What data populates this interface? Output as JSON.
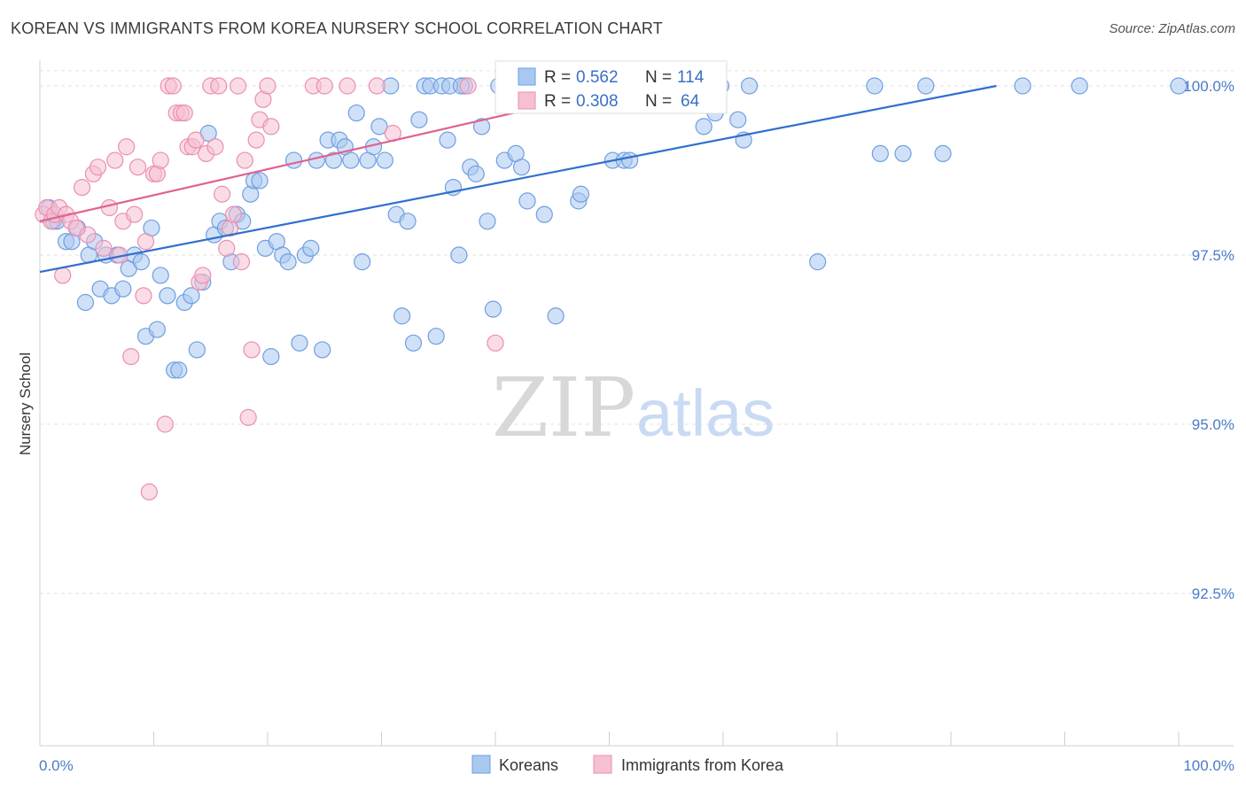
{
  "title": "KOREAN VS IMMIGRANTS FROM KOREA NURSERY SCHOOL CORRELATION CHART",
  "source": "Source: ZipAtlas.com",
  "watermark": {
    "zip": "ZIP",
    "atlas": "atlas"
  },
  "colors": {
    "blue_fill": "#a9c8f0",
    "blue_stroke": "#6f9ee0",
    "blue_line": "#2f6fcf",
    "pink_fill": "#f6c0d2",
    "pink_stroke": "#ea8fb0",
    "pink_line": "#e0628f",
    "grid": "#e2e2e2",
    "tick_label": "#4a7cc9"
  },
  "legend_top": {
    "rows": [
      {
        "r_label": "R = ",
        "r_value": "0.562",
        "n_label": "N = ",
        "n_value": "114",
        "series": "koreans"
      },
      {
        "r_label": "R = ",
        "r_value": "0.308",
        "n_label": "N = ",
        "n_value": "64",
        "series": "immigrants"
      }
    ]
  },
  "legend_bottom": [
    "Koreans",
    "Immigrants from Korea"
  ],
  "chart_data": {
    "type": "scatter",
    "title": "KOREAN VS IMMIGRANTS FROM KOREA NURSERY SCHOOL CORRELATION CHART",
    "xlabel": "",
    "ylabel": "Nursery School",
    "xlim": [
      0,
      100
    ],
    "ylim": [
      90.0,
      100.25
    ],
    "x_tick_labels": [
      "0.0%",
      "100.0%"
    ],
    "y_ticks": [
      92.5,
      95.0,
      97.5,
      100.0
    ],
    "y_tick_labels": [
      "92.5%",
      "95.0%",
      "97.5%",
      "100.0%"
    ],
    "grid": true,
    "legend_placement": "top-center",
    "series": [
      {
        "name": "Koreans",
        "r": 0.562,
        "n": 114,
        "trend": {
          "x0": 0,
          "y0": 97.25,
          "x1": 84,
          "y1": 100.0
        },
        "points": [
          [
            0.8,
            98.2
          ],
          [
            1.2,
            98.0
          ],
          [
            1.5,
            98.0
          ],
          [
            2.3,
            97.7
          ],
          [
            2.8,
            97.7
          ],
          [
            3.3,
            97.9
          ],
          [
            4.0,
            96.8
          ],
          [
            4.3,
            97.5
          ],
          [
            4.8,
            97.7
          ],
          [
            5.3,
            97.0
          ],
          [
            5.8,
            97.5
          ],
          [
            6.3,
            96.9
          ],
          [
            6.8,
            97.5
          ],
          [
            7.3,
            97.0
          ],
          [
            7.8,
            97.3
          ],
          [
            8.3,
            97.5
          ],
          [
            8.9,
            97.4
          ],
          [
            9.3,
            96.3
          ],
          [
            9.8,
            97.9
          ],
          [
            10.3,
            96.4
          ],
          [
            10.6,
            97.2
          ],
          [
            11.2,
            96.9
          ],
          [
            11.8,
            95.8
          ],
          [
            12.2,
            95.8
          ],
          [
            12.7,
            96.8
          ],
          [
            13.3,
            96.9
          ],
          [
            13.8,
            96.1
          ],
          [
            14.3,
            97.1
          ],
          [
            14.8,
            99.3
          ],
          [
            15.3,
            97.8
          ],
          [
            15.8,
            98.0
          ],
          [
            16.3,
            97.9
          ],
          [
            16.8,
            97.4
          ],
          [
            17.3,
            98.1
          ],
          [
            17.8,
            98.0
          ],
          [
            18.5,
            98.4
          ],
          [
            18.8,
            98.6
          ],
          [
            19.3,
            98.6
          ],
          [
            19.8,
            97.6
          ],
          [
            20.3,
            96.0
          ],
          [
            20.8,
            97.7
          ],
          [
            21.3,
            97.5
          ],
          [
            21.8,
            97.4
          ],
          [
            22.3,
            98.9
          ],
          [
            22.8,
            96.2
          ],
          [
            23.3,
            97.5
          ],
          [
            23.8,
            97.6
          ],
          [
            24.3,
            98.9
          ],
          [
            24.8,
            96.1
          ],
          [
            25.3,
            99.2
          ],
          [
            25.8,
            98.9
          ],
          [
            26.3,
            99.2
          ],
          [
            26.8,
            99.1
          ],
          [
            27.3,
            98.9
          ],
          [
            27.8,
            99.6
          ],
          [
            28.3,
            97.4
          ],
          [
            28.8,
            98.9
          ],
          [
            29.3,
            99.1
          ],
          [
            29.8,
            99.4
          ],
          [
            30.3,
            98.9
          ],
          [
            30.8,
            100.0
          ],
          [
            31.3,
            98.1
          ],
          [
            31.8,
            96.6
          ],
          [
            32.3,
            98.0
          ],
          [
            32.8,
            96.2
          ],
          [
            33.3,
            99.5
          ],
          [
            33.8,
            100.0
          ],
          [
            34.3,
            100.0
          ],
          [
            34.8,
            96.3
          ],
          [
            35.3,
            100.0
          ],
          [
            35.8,
            99.2
          ],
          [
            36.3,
            98.5
          ],
          [
            36.8,
            97.5
          ],
          [
            37.3,
            100.0
          ],
          [
            37.8,
            98.8
          ],
          [
            38.3,
            98.7
          ],
          [
            38.8,
            99.4
          ],
          [
            39.3,
            98.0
          ],
          [
            39.8,
            96.7
          ],
          [
            40.3,
            100.0
          ],
          [
            40.8,
            98.9
          ],
          [
            41.3,
            100.0
          ],
          [
            41.8,
            99.0
          ],
          [
            42.3,
            98.8
          ],
          [
            42.8,
            98.3
          ],
          [
            43.3,
            100.0
          ],
          [
            44.3,
            98.1
          ],
          [
            45.3,
            96.6
          ],
          [
            46.3,
            100.0
          ],
          [
            47.3,
            98.3
          ],
          [
            47.5,
            98.4
          ],
          [
            48.3,
            100.0
          ],
          [
            50.3,
            98.9
          ],
          [
            50.8,
            100.0
          ],
          [
            51.3,
            98.9
          ],
          [
            51.8,
            98.9
          ],
          [
            52.3,
            100.0
          ],
          [
            56.3,
            100.0
          ],
          [
            56.8,
            100.0
          ],
          [
            58.3,
            99.4
          ],
          [
            59.3,
            99.6
          ],
          [
            59.8,
            100.0
          ],
          [
            61.3,
            99.5
          ],
          [
            61.8,
            99.2
          ],
          [
            62.3,
            100.0
          ],
          [
            68.3,
            97.4
          ],
          [
            73.3,
            100.0
          ],
          [
            73.8,
            99.0
          ],
          [
            75.8,
            99.0
          ],
          [
            77.8,
            100.0
          ],
          [
            79.3,
            99.0
          ],
          [
            86.3,
            100.0
          ],
          [
            91.3,
            100.0
          ],
          [
            100.0,
            100.0
          ],
          [
            36.0,
            100.0
          ],
          [
            37.0,
            100.0
          ]
        ]
      },
      {
        "name": "Immigrants from Korea",
        "r": 0.308,
        "n": 64,
        "trend": {
          "x0": 0,
          "y0": 98.0,
          "x1": 52,
          "y1": 100.0
        },
        "points": [
          [
            0.3,
            98.1
          ],
          [
            0.6,
            98.2
          ],
          [
            1.0,
            98.0
          ],
          [
            1.3,
            98.1
          ],
          [
            1.7,
            98.2
          ],
          [
            2.0,
            97.2
          ],
          [
            2.3,
            98.1
          ],
          [
            2.7,
            98.0
          ],
          [
            3.2,
            97.9
          ],
          [
            3.7,
            98.5
          ],
          [
            4.2,
            97.8
          ],
          [
            4.7,
            98.7
          ],
          [
            5.1,
            98.8
          ],
          [
            5.6,
            97.6
          ],
          [
            6.1,
            98.2
          ],
          [
            6.6,
            98.9
          ],
          [
            7.0,
            97.5
          ],
          [
            7.3,
            98.0
          ],
          [
            7.6,
            99.1
          ],
          [
            8.0,
            96.0
          ],
          [
            8.3,
            98.1
          ],
          [
            8.6,
            98.8
          ],
          [
            9.1,
            96.9
          ],
          [
            9.3,
            97.7
          ],
          [
            9.6,
            94.0
          ],
          [
            10.0,
            98.7
          ],
          [
            10.3,
            98.7
          ],
          [
            10.6,
            98.9
          ],
          [
            11.0,
            95.0
          ],
          [
            11.3,
            100.0
          ],
          [
            11.7,
            100.0
          ],
          [
            12.0,
            99.6
          ],
          [
            12.4,
            99.6
          ],
          [
            12.7,
            99.6
          ],
          [
            13.0,
            99.1
          ],
          [
            13.4,
            99.1
          ],
          [
            13.7,
            99.2
          ],
          [
            14.0,
            97.1
          ],
          [
            14.3,
            97.2
          ],
          [
            14.6,
            99.0
          ],
          [
            15.0,
            100.0
          ],
          [
            15.4,
            99.1
          ],
          [
            15.7,
            100.0
          ],
          [
            16.0,
            98.4
          ],
          [
            16.4,
            97.6
          ],
          [
            16.7,
            97.9
          ],
          [
            17.0,
            98.1
          ],
          [
            17.4,
            100.0
          ],
          [
            17.7,
            97.4
          ],
          [
            18.0,
            98.9
          ],
          [
            18.3,
            95.1
          ],
          [
            18.6,
            96.1
          ],
          [
            19.0,
            99.2
          ],
          [
            19.3,
            99.5
          ],
          [
            19.6,
            99.8
          ],
          [
            20.0,
            100.0
          ],
          [
            20.3,
            99.4
          ],
          [
            24.0,
            100.0
          ],
          [
            25.0,
            100.0
          ],
          [
            27.0,
            100.0
          ],
          [
            29.6,
            100.0
          ],
          [
            31.0,
            99.3
          ],
          [
            37.6,
            100.0
          ],
          [
            40.0,
            96.2
          ]
        ]
      }
    ]
  }
}
